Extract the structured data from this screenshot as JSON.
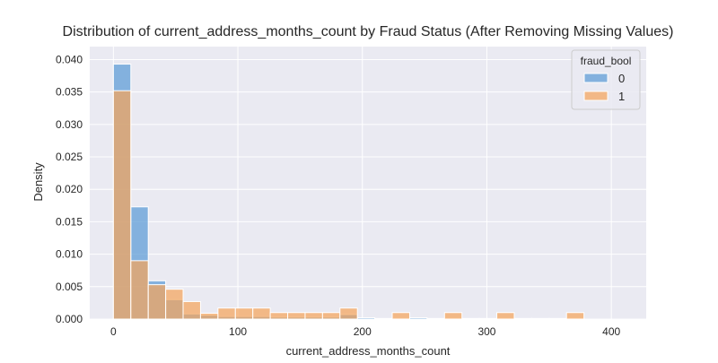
{
  "chart_data": {
    "type": "histogram",
    "title": "Distribution of current_address_months_count by Fraud Status (After Removing Missing Values)",
    "xlabel": "current_address_months_count",
    "ylabel": "Density",
    "xlim": [
      -19,
      428
    ],
    "ylim": [
      0,
      0.042
    ],
    "x_ticks": [
      0,
      100,
      200,
      300,
      400
    ],
    "y_ticks": [
      0.0,
      0.005,
      0.01,
      0.015,
      0.02,
      0.025,
      0.03,
      0.035,
      0.04
    ],
    "y_tick_labels": [
      "0.000",
      "0.005",
      "0.010",
      "0.015",
      "0.020",
      "0.025",
      "0.030",
      "0.035",
      "0.040"
    ],
    "grid": true,
    "legend": {
      "title": "fraud_bool",
      "position": "top-right"
    },
    "bin_edges": [
      0,
      14,
      28,
      42,
      56,
      70,
      84,
      98,
      112,
      126,
      140,
      154,
      168,
      182,
      196,
      210,
      224,
      238,
      252,
      266,
      280,
      294,
      308,
      322,
      336,
      350,
      364,
      378,
      392,
      406,
      420
    ],
    "series": [
      {
        "name": "0",
        "color": "#5b9bd5",
        "values": [
          0.0393,
          0.0173,
          0.0059,
          0.003,
          0.0008,
          0.0006,
          0.0004,
          0.0004,
          0.0004,
          0.0003,
          0.0003,
          0.0003,
          0.0003,
          0.0007,
          0.0002,
          0.0001,
          0.0001,
          0.0002,
          0.0001,
          0.0001,
          0.0001,
          0.0001,
          0.0001,
          0.0001,
          0.0001,
          0.0001,
          0.0001,
          0.0,
          0.0,
          0.0
        ]
      },
      {
        "name": "1",
        "color": "#f5a55c",
        "values": [
          0.0352,
          0.009,
          0.0053,
          0.0046,
          0.0027,
          0.0009,
          0.0017,
          0.0017,
          0.0017,
          0.001,
          0.001,
          0.001,
          0.001,
          0.0017,
          0.0,
          0.0,
          0.001,
          0.0,
          0.0,
          0.001,
          0.0,
          0.0,
          0.001,
          0.0,
          0.0,
          0.0,
          0.001,
          0.0,
          0.0,
          0.0
        ]
      }
    ]
  }
}
